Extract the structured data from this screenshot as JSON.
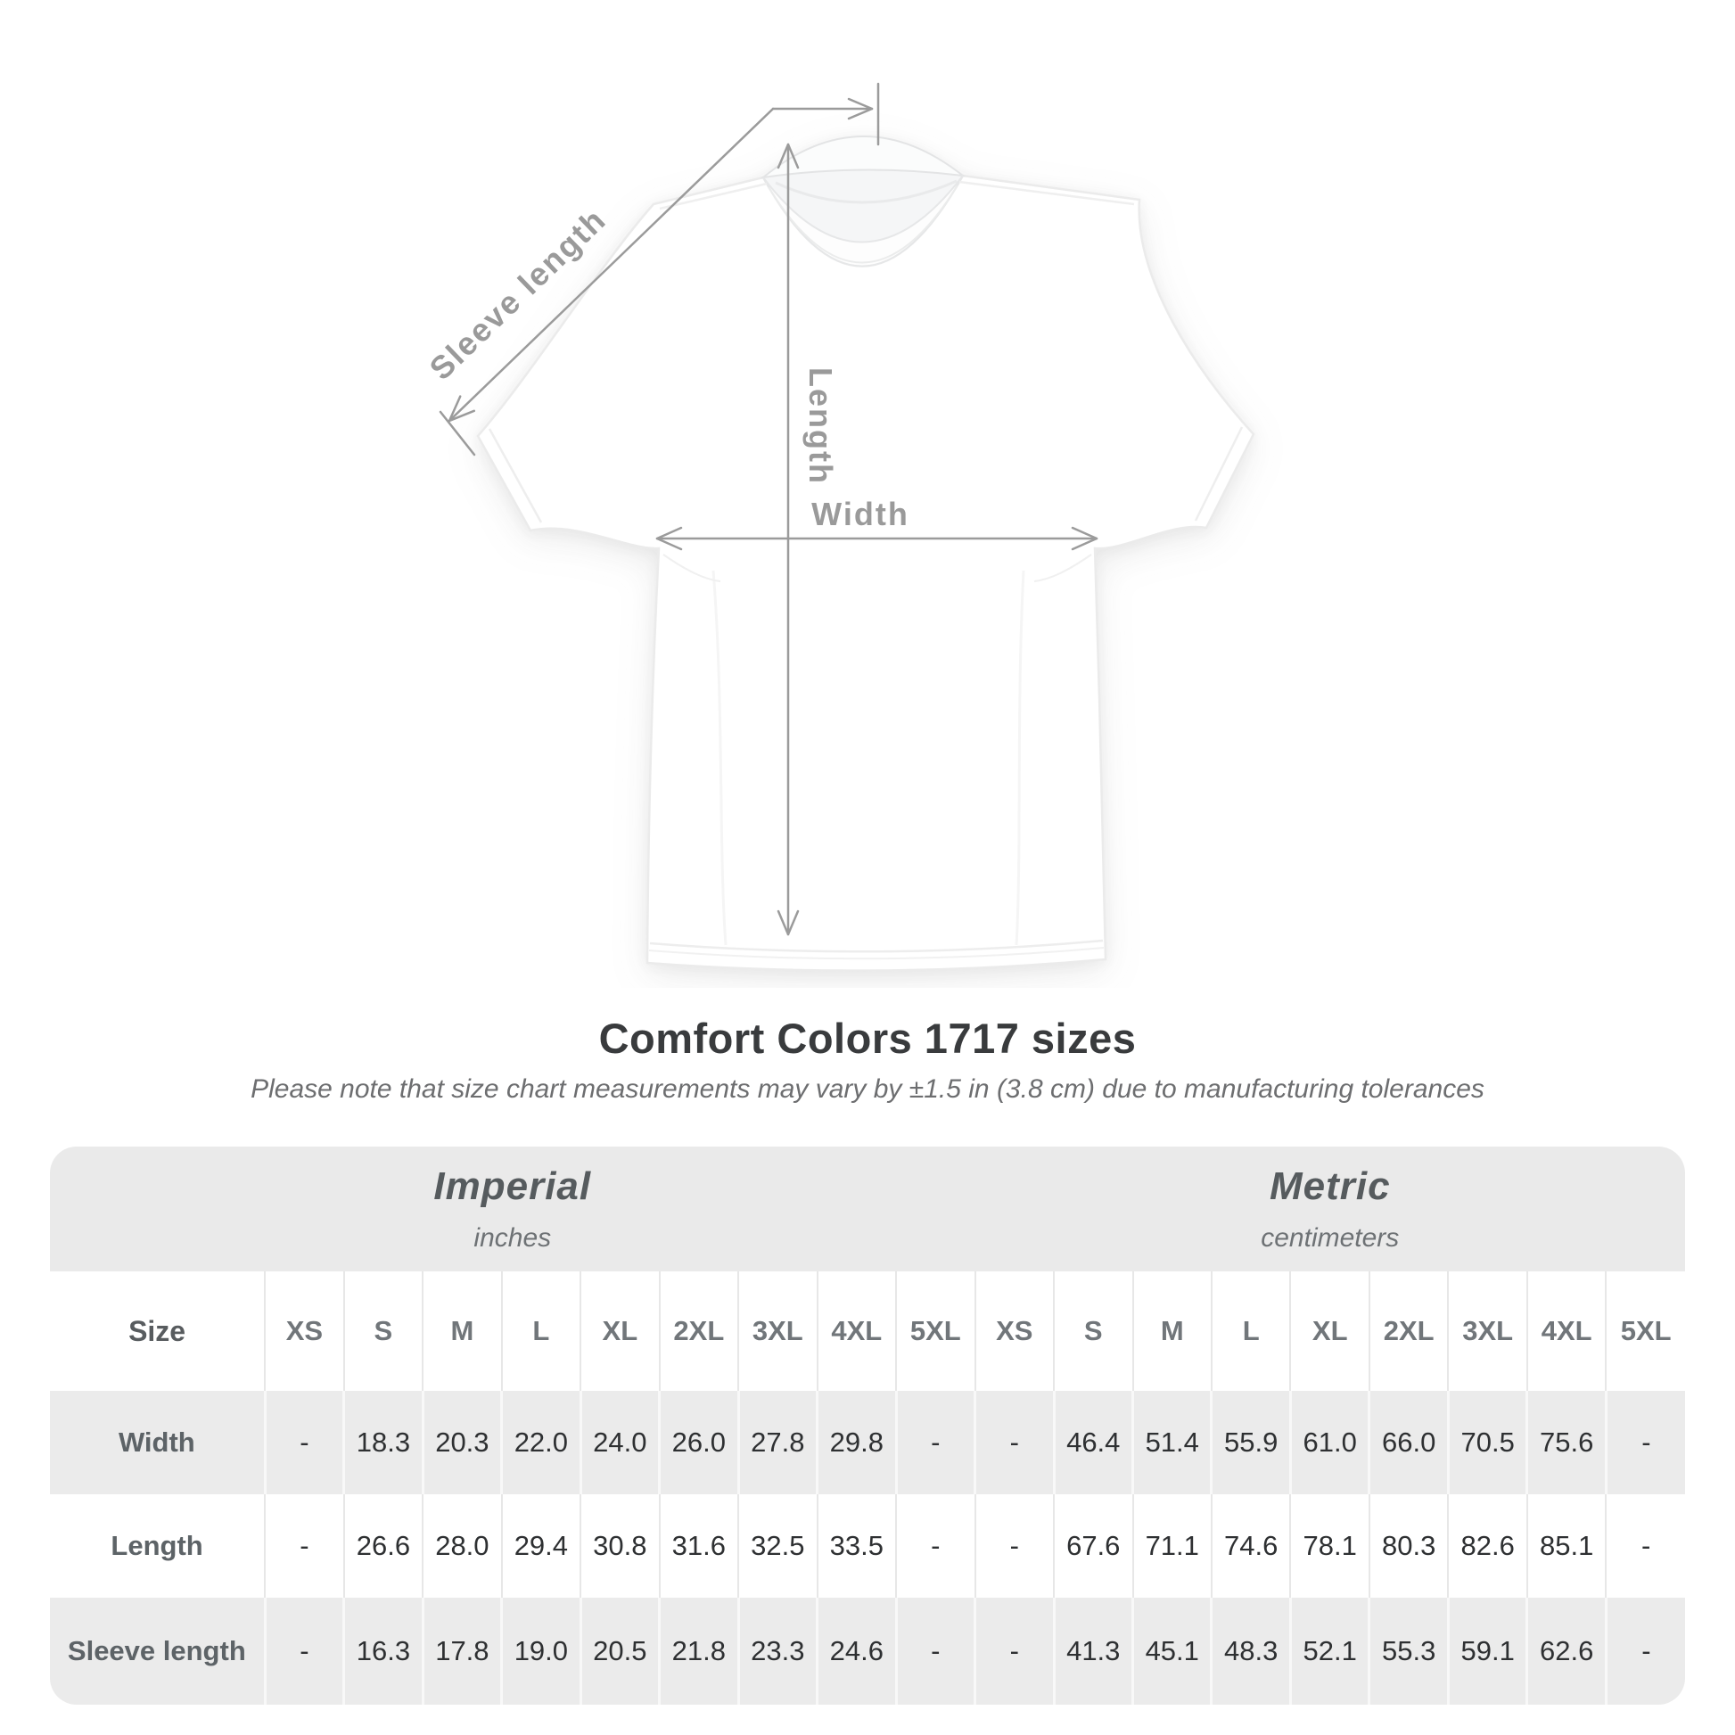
{
  "diagram": {
    "labels": {
      "sleeve_length": "Sleeve length",
      "length": "Length",
      "width": "Width"
    },
    "annotation_color": "#9b9b9b"
  },
  "heading": {
    "title": "Comfort Colors 1717 sizes",
    "subtitle": "Please note that size chart measurements may vary by ±1.5 in (3.8 cm) due to manufacturing tolerances"
  },
  "chart_data": {
    "type": "table",
    "title": "Comfort Colors 1717 sizes",
    "unit_groups": [
      {
        "label": "Imperial",
        "sublabel": "inches"
      },
      {
        "label": "Metric",
        "sublabel": "centimeters"
      }
    ],
    "size_header_label": "Size",
    "sizes": [
      "XS",
      "S",
      "M",
      "L",
      "XL",
      "2XL",
      "3XL",
      "4XL",
      "5XL"
    ],
    "rows": [
      {
        "label": "Width",
        "imperial": [
          "-",
          "18.3",
          "20.3",
          "22.0",
          "24.0",
          "26.0",
          "27.8",
          "29.8",
          "-"
        ],
        "metric": [
          "-",
          "46.4",
          "51.4",
          "55.9",
          "61.0",
          "66.0",
          "70.5",
          "75.6",
          "-"
        ]
      },
      {
        "label": "Length",
        "imperial": [
          "-",
          "26.6",
          "28.0",
          "29.4",
          "30.8",
          "31.6",
          "32.5",
          "33.5",
          "-"
        ],
        "metric": [
          "-",
          "67.6",
          "71.1",
          "74.6",
          "78.1",
          "80.3",
          "82.6",
          "85.1",
          "-"
        ]
      },
      {
        "label": "Sleeve length",
        "imperial": [
          "-",
          "16.3",
          "17.8",
          "19.0",
          "20.5",
          "21.8",
          "23.3",
          "24.6",
          "-"
        ],
        "metric": [
          "-",
          "41.3",
          "45.1",
          "48.3",
          "52.1",
          "55.3",
          "59.1",
          "62.6",
          "-"
        ]
      }
    ],
    "colors": {
      "header_band": "#eaeaea",
      "row_gray": "#ebebeb",
      "value_text": "#2e3032",
      "row_label_text": "#5d6367",
      "size_header_text": "#71767a"
    }
  }
}
